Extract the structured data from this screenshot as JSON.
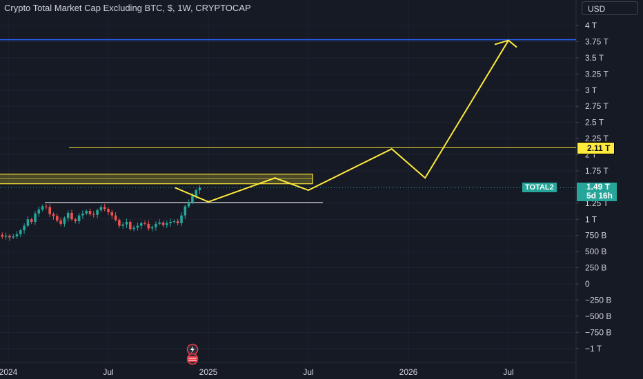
{
  "header": {
    "title": "Crypto Total Market Cap Excluding BTC, $, 1W, CRYPTOCAP",
    "currency_button": "USD"
  },
  "price_axis": {
    "ticks": [
      {
        "label": "4 T",
        "value": 4000
      },
      {
        "label": "3.75 T",
        "value": 3750
      },
      {
        "label": "3.5 T",
        "value": 3500
      },
      {
        "label": "3.25 T",
        "value": 3250
      },
      {
        "label": "3 T",
        "value": 3000
      },
      {
        "label": "2.75 T",
        "value": 2750
      },
      {
        "label": "2.5 T",
        "value": 2500
      },
      {
        "label": "2.25 T",
        "value": 2250
      },
      {
        "label": "2 T",
        "value": 2000
      },
      {
        "label": "1.75 T",
        "value": 1750
      },
      {
        "label": "1.25 T",
        "value": 1250
      },
      {
        "label": "1 T",
        "value": 1000
      },
      {
        "label": "750 B",
        "value": 750
      },
      {
        "label": "500 B",
        "value": 500
      },
      {
        "label": "250 B",
        "value": 250
      },
      {
        "label": "0",
        "value": 0
      },
      {
        "label": "−250 B",
        "value": -250
      },
      {
        "label": "−500 B",
        "value": -500
      },
      {
        "label": "−750 B",
        "value": -750
      },
      {
        "label": "−1 T",
        "value": -1000
      }
    ]
  },
  "time_axis": {
    "ticks": [
      {
        "label": "2024",
        "t": 0
      },
      {
        "label": "Jul",
        "t": 0.5
      },
      {
        "label": "2025",
        "t": 1
      },
      {
        "label": "Jul",
        "t": 1.5
      },
      {
        "label": "2026",
        "t": 2
      },
      {
        "label": "Jul",
        "t": 2.5
      }
    ]
  },
  "tags": {
    "level": {
      "label": "2.11 T",
      "value": 2110,
      "color": "#ffeb3b"
    },
    "symbol": {
      "label": "TOTAL2",
      "color": "#26a69a"
    },
    "price": {
      "label": "1.49 T",
      "value": 1490,
      "countdown": "5d 16h",
      "color": "#26a69a"
    }
  },
  "colors": {
    "up": "#26a69a",
    "down": "#ef5350",
    "drawing": "#ffeb3b",
    "target_line": "#2962ff"
  },
  "chart_data": {
    "type": "candlestick",
    "title": "Crypto Total Market Cap Excluding BTC, $, 1W, CRYPTOCAP",
    "unit": "B USD",
    "y_range": [
      -1100,
      4100
    ],
    "x_range": [
      "2024-01",
      "2026-12"
    ],
    "grid": true,
    "close_series": [
      760,
      730,
      745,
      720,
      735,
      770,
      830,
      900,
      1000,
      960,
      1090,
      1150,
      1200,
      1190,
      1080,
      1050,
      980,
      930,
      1020,
      1100,
      1000,
      970,
      1060,
      1090,
      1130,
      1080,
      1070,
      1140,
      1190,
      1160,
      1110,
      1060,
      990,
      900,
      920,
      960,
      850,
      870,
      900,
      940,
      930,
      860,
      880,
      930,
      950,
      910,
      940,
      960,
      970,
      940,
      1060,
      1200,
      1270,
      1360,
      1450,
      1490
    ],
    "drawings": {
      "target_line_level": 3780,
      "resistance_level": 2110,
      "support_level": 1260,
      "zone": [
        1550,
        1700
      ],
      "projection_path": [
        {
          "x": "2024-11",
          "y": 1490
        },
        {
          "x": "2025-01",
          "y": 1270
        },
        {
          "x": "2025-05",
          "y": 1640
        },
        {
          "x": "2025-07",
          "y": 1450
        },
        {
          "x": "2025-12",
          "y": 2090
        },
        {
          "x": "2026-02",
          "y": 1640
        },
        {
          "x": "2026-07",
          "y": 3770
        }
      ]
    }
  }
}
